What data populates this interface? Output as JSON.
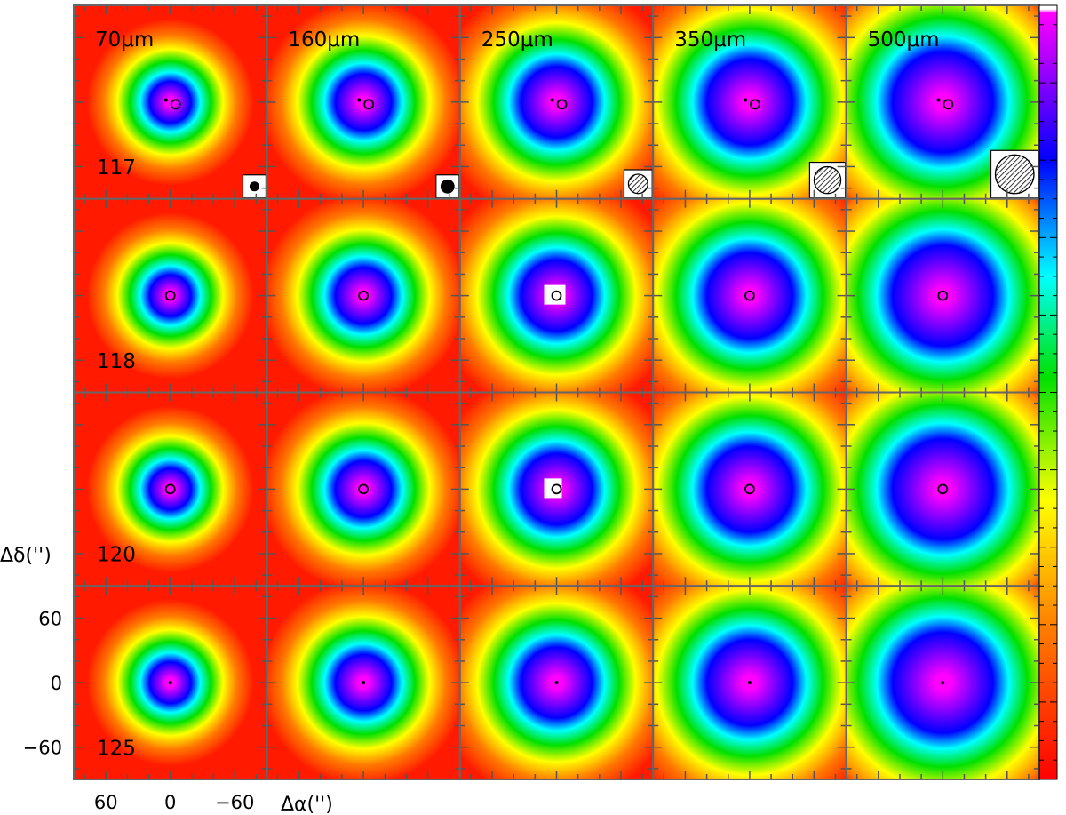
{
  "chart_data": {
    "type": "heatmap",
    "layout": {
      "rows": 4,
      "columns": 5
    },
    "wavelengths": [
      "70μm",
      "160μm",
      "250μm",
      "350μm",
      "500μm"
    ],
    "source_ids": [
      "117",
      "118",
      "120",
      "125"
    ],
    "xlabel": "Δα('')",
    "ylabel": "Δδ('')",
    "x_ticks": [
      60,
      0,
      -60
    ],
    "y_ticks": [
      60,
      0,
      -60
    ],
    "xlim": [
      90,
      -90
    ],
    "ylim": [
      -90,
      90
    ],
    "colormap": [
      "#ff0000",
      "#ff8000",
      "#ffff00",
      "#00e000",
      "#00ffff",
      "#0000ff",
      "#ff00ff",
      "#ffffff"
    ],
    "beam_sizes_arcsec": [
      8,
      12,
      18,
      25,
      36
    ],
    "markers": {
      "117": [
        {
          "x": 4,
          "y": 2,
          "style": "filled"
        },
        {
          "x": -5,
          "y": -2,
          "style": "open"
        }
      ],
      "118": [
        {
          "x": 0,
          "y": 0,
          "style": "open"
        }
      ],
      "120": [
        {
          "x": 0,
          "y": 0,
          "style": "open"
        }
      ],
      "125": [
        {
          "x": 0,
          "y": 0,
          "style": "filled"
        }
      ]
    }
  }
}
